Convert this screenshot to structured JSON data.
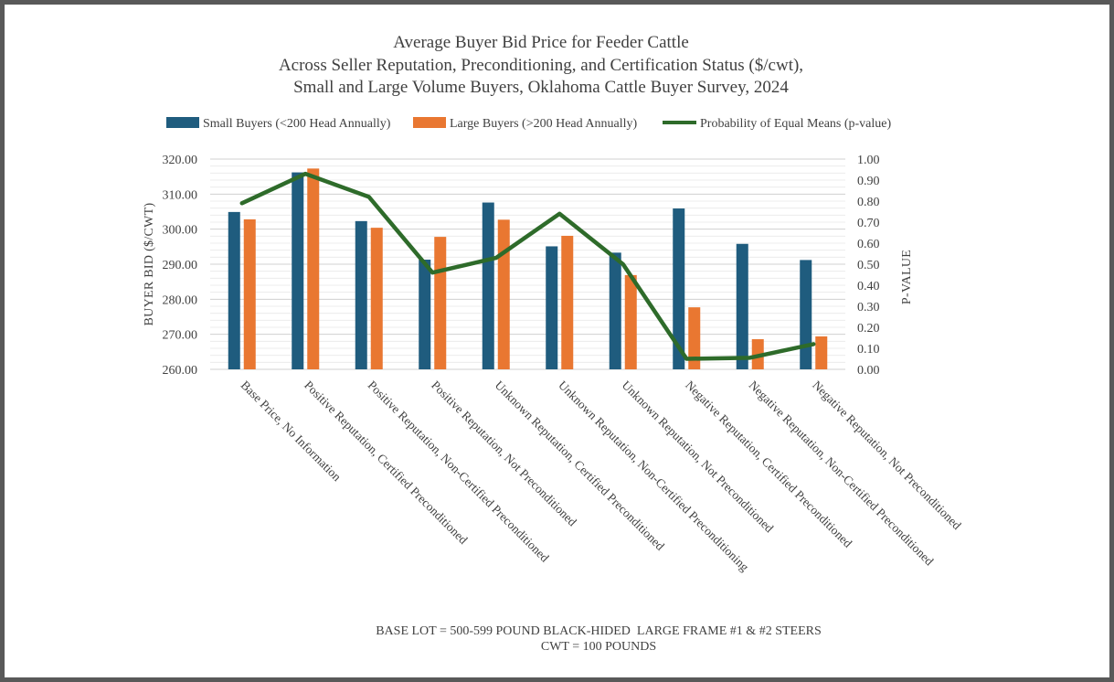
{
  "chart_data": {
    "type": "bar",
    "title_lines": [
      "Average Buyer Bid Price for Feeder Cattle",
      "Across Seller Reputation, Preconditioning, and Certification Status ($/cwt),",
      "Small and Large Volume Buyers, Oklahoma Cattle Buyer Survey, 2024"
    ],
    "categories": [
      "Base Price, No Information",
      "Positive Reputation, Certified Preconditioned",
      "Positive Reputation, Non-Certified Preconditioned",
      "Positive Reputation, Not Preconditioned",
      "Unknown Reputation, Certified Preconditioned",
      "Unknown Reputation, Non-Certified Preconditioning",
      "Unknown Reputation, Not Preconditioned",
      "Negative Reputation, Certified Preconditioned",
      "Negative Reputation, Non-Certified Preconditioned",
      "Negative Reputation, Not Preconditioned"
    ],
    "series": [
      {
        "name": "Small Buyers (<200 Head Annually)",
        "type": "bar",
        "axis": "left",
        "color": "#1F5C7E",
        "values": [
          304.9,
          316.2,
          302.3,
          291.3,
          307.6,
          295.1,
          293.3,
          305.9,
          295.8,
          291.2
        ]
      },
      {
        "name": "Large Buyers (>200 Head Annually)",
        "type": "bar",
        "axis": "left",
        "color": "#E97731",
        "values": [
          302.8,
          317.3,
          300.4,
          297.8,
          302.7,
          298.1,
          286.9,
          277.7,
          268.6,
          269.4
        ]
      },
      {
        "name": "Probability of Equal Means (p-value)",
        "type": "line",
        "axis": "right",
        "color": "#2E6B2A",
        "values": [
          0.79,
          0.93,
          0.82,
          0.46,
          0.53,
          0.74,
          0.5,
          0.05,
          0.055,
          0.12
        ]
      }
    ],
    "ylabel": "BUYER BID ($/CWT)",
    "y2label": "P-VALUE",
    "ylim": [
      260,
      320
    ],
    "yticks": [
      "260.00",
      "270.00",
      "280.00",
      "290.00",
      "300.00",
      "310.00",
      "320.00"
    ],
    "y2lim": [
      0,
      1
    ],
    "y2ticks": [
      "0.00",
      "0.10",
      "0.20",
      "0.30",
      "0.40",
      "0.50",
      "0.60",
      "0.70",
      "0.80",
      "0.90",
      "1.00"
    ],
    "grid": true,
    "legend_position": "top",
    "notes": [
      "BASE LOT = 500-599 POUND BLACK-HIDED  LARGE FRAME #1 & #2 STEERS",
      "CWT = 100 POUNDS"
    ]
  }
}
